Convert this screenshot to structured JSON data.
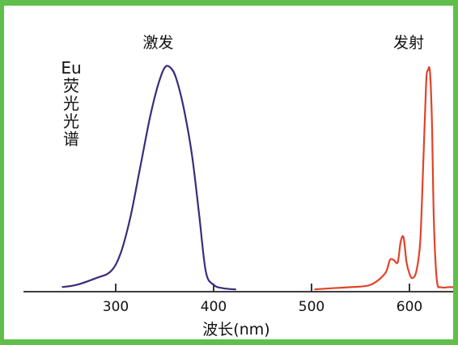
{
  "chart_data": {
    "type": "line",
    "xlabel": "波长(nm)",
    "ylabel": [
      "Eu",
      "荧",
      "光",
      "光",
      "谱"
    ],
    "xlim": [
      200,
      650
    ],
    "ylim": [
      0,
      1
    ],
    "x_ticks": [
      300,
      400,
      500,
      600
    ],
    "x_tick_labels": [
      "300",
      "400",
      "500",
      "600"
    ],
    "grid": false,
    "legend": "none",
    "series": [
      {
        "name": "激发",
        "color": "#3d2b7a",
        "x": [
          245,
          260,
          280,
          295,
          305,
          315,
          325,
          335,
          343,
          350,
          356,
          362,
          370,
          378,
          385,
          392,
          400,
          410,
          423
        ],
        "y": [
          0.02,
          0.03,
          0.06,
          0.09,
          0.17,
          0.33,
          0.55,
          0.77,
          0.91,
          0.99,
          0.99,
          0.94,
          0.8,
          0.6,
          0.35,
          0.09,
          0.03,
          0.015,
          0.01
        ]
      },
      {
        "name": "发射",
        "color": "#e0432a",
        "x": [
          503,
          520,
          540,
          560,
          575,
          580,
          584,
          588,
          591,
          594,
          597,
          600,
          603,
          607,
          611,
          614,
          617,
          619,
          621,
          623,
          625,
          628,
          632,
          640,
          645
        ],
        "y": [
          0.01,
          0.015,
          0.02,
          0.03,
          0.08,
          0.14,
          0.14,
          0.13,
          0.22,
          0.24,
          0.13,
          0.08,
          0.06,
          0.09,
          0.22,
          0.55,
          0.92,
          0.98,
          0.97,
          0.75,
          0.3,
          0.05,
          0.02,
          0.02,
          0.02
        ]
      }
    ]
  }
}
